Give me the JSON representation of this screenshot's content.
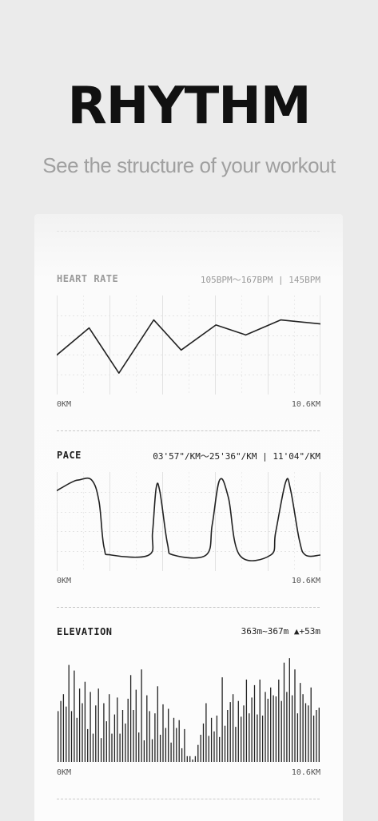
{
  "hero": {
    "title": "RHYTHM",
    "subtitle": "See the structure of your workout"
  },
  "sections": {
    "heart_rate": {
      "title": "HEART RATE",
      "range": "105BPM～167BPM",
      "separator": "|",
      "average": "145BPM",
      "x_start": "0KM",
      "x_end": "10.6KM"
    },
    "pace": {
      "title": "PACE",
      "range": "03'57\"/KM～25'36\"/KM",
      "separator": "|",
      "average": "11'04\"/KM",
      "x_start": "0KM",
      "x_end": "10.6KM"
    },
    "elevation": {
      "title": "ELEVATION",
      "range": "363m~367m",
      "gain": "▲+53m",
      "x_start": "0KM",
      "x_end": "10.6KM"
    }
  },
  "chart_data": [
    {
      "type": "line",
      "name": "heart-rate",
      "x": [
        0,
        1.3,
        2.5,
        3.9,
        5.0,
        6.4,
        7.6,
        9.0,
        10.6
      ],
      "values": [
        125,
        152,
        107,
        160,
        130,
        155,
        145,
        160,
        156
      ],
      "ylim": [
        100,
        170
      ],
      "xlim": [
        0,
        10.6
      ],
      "grid": true
    },
    {
      "type": "line",
      "name": "pace",
      "x": [
        0,
        0.6,
        0.9,
        1.4,
        1.7,
        1.9,
        2.2,
        3.7,
        3.85,
        4.0,
        4.15,
        4.45,
        4.7,
        6.0,
        6.25,
        6.55,
        6.9,
        7.35,
        8.6,
        8.8,
        9.2,
        9.4,
        9.75,
        10.0,
        10.6
      ],
      "values": [
        0.84,
        0.95,
        0.98,
        0.98,
        0.7,
        0.1,
        0.0,
        0.0,
        0.3,
        0.88,
        0.82,
        0.15,
        0.0,
        0.0,
        0.4,
        0.98,
        0.75,
        0.0,
        0.0,
        0.3,
        0.95,
        0.85,
        0.2,
        0.0,
        0.0
      ],
      "ylim": [
        0,
        1
      ],
      "xlim": [
        0,
        10.6
      ],
      "grid": true
    },
    {
      "type": "bar",
      "name": "elevation",
      "values": [
        0.43,
        0.52,
        0.58,
        0.47,
        0.84,
        0.43,
        0.79,
        0.37,
        0.63,
        0.5,
        0.69,
        0.27,
        0.6,
        0.23,
        0.48,
        0.63,
        0.19,
        0.5,
        0.34,
        0.58,
        0.23,
        0.4,
        0.55,
        0.23,
        0.44,
        0.32,
        0.54,
        0.75,
        0.44,
        0.62,
        0.24,
        0.8,
        0.17,
        0.57,
        0.43,
        0.18,
        0.41,
        0.65,
        0.22,
        0.49,
        0.28,
        0.45,
        0.15,
        0.37,
        0.28,
        0.35,
        0.1,
        0.27,
        0.03,
        0.03,
        0.0,
        0.03,
        0.13,
        0.22,
        0.32,
        0.5,
        0.21,
        0.37,
        0.25,
        0.39,
        0.2,
        0.73,
        0.3,
        0.44,
        0.51,
        0.58,
        0.29,
        0.52,
        0.38,
        0.48,
        0.71,
        0.41,
        0.55,
        0.66,
        0.4,
        0.71,
        0.39,
        0.6,
        0.54,
        0.64,
        0.57,
        0.56,
        0.71,
        0.52,
        0.86,
        0.6,
        0.9,
        0.57,
        0.8,
        0.41,
        0.68,
        0.58,
        0.5,
        0.48,
        0.64,
        0.39,
        0.44,
        0.46
      ],
      "ylim": [
        363,
        367
      ],
      "xlim": [
        0,
        10.6
      ]
    }
  ]
}
